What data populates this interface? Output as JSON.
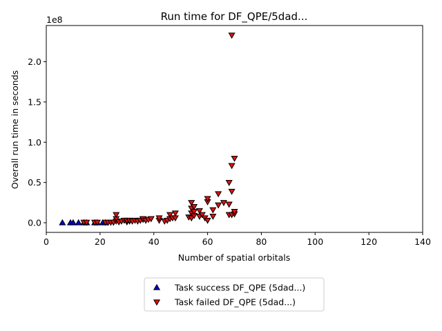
{
  "chart_data": {
    "type": "scatter",
    "title": "Run time for DF_QPE/5dad...",
    "xlabel": "Number of spatial orbitals",
    "ylabel": "Overall run time in seconds",
    "y_offset_label": "1e8",
    "y_scale_factor": 100000000,
    "xlim": [
      0,
      140
    ],
    "ylim": [
      -0.12,
      2.45
    ],
    "x_ticks": [
      0,
      20,
      40,
      60,
      80,
      100,
      120,
      140
    ],
    "x_tick_labels": [
      "0",
      "20",
      "40",
      "60",
      "80",
      "100",
      "120",
      "140"
    ],
    "y_ticks": [
      0.0,
      0.5,
      1.0,
      1.5,
      2.0
    ],
    "y_tick_labels": [
      "0.0",
      "0.5",
      "1.0",
      "1.5",
      "2.0"
    ],
    "grid": false,
    "legend_position": "below plot, center",
    "series": [
      {
        "name": "Task success DF_QPE (5dad...)",
        "marker": "triangle-up",
        "color": "#0000cc",
        "x": [
          6,
          9,
          10,
          12,
          14,
          15,
          18,
          19,
          21,
          22
        ],
        "y": [
          0.0,
          0.0,
          0.0,
          0.0,
          0.0,
          0.0,
          0.0,
          0.0,
          0.0,
          0.0
        ]
      },
      {
        "name": "Task failed DF_QPE (5dad...)",
        "marker": "triangle-down",
        "color": "#dd1111",
        "x": [
          14,
          15,
          18,
          19,
          22,
          23,
          24,
          25,
          26,
          26,
          26,
          27,
          28,
          29,
          30,
          30,
          31,
          31,
          32,
          33,
          34,
          35,
          36,
          36,
          37,
          38,
          39,
          42,
          42,
          44,
          45,
          46,
          46,
          47,
          48,
          48,
          53,
          54,
          54,
          54,
          54,
          55,
          55,
          55,
          57,
          57,
          58,
          59,
          60,
          60,
          60,
          62,
          62,
          64,
          64,
          66,
          68,
          68,
          68,
          69,
          69,
          69,
          70,
          70,
          70,
          69
        ],
        "y": [
          0.005,
          0.005,
          0.005,
          0.005,
          0.005,
          0.005,
          0.005,
          0.005,
          0.02,
          0.05,
          0.1,
          0.01,
          0.02,
          0.03,
          0.01,
          0.03,
          0.02,
          0.03,
          0.02,
          0.03,
          0.02,
          0.03,
          0.04,
          0.05,
          0.03,
          0.04,
          0.05,
          0.03,
          0.06,
          0.02,
          0.03,
          0.05,
          0.1,
          0.06,
          0.06,
          0.12,
          0.07,
          0.06,
          0.12,
          0.18,
          0.25,
          0.09,
          0.14,
          0.2,
          0.08,
          0.15,
          0.1,
          0.06,
          0.03,
          0.26,
          0.3,
          0.08,
          0.16,
          0.22,
          0.36,
          0.25,
          0.1,
          0.23,
          0.5,
          0.1,
          0.39,
          0.71,
          0.11,
          0.14,
          0.8,
          2.33
        ]
      }
    ]
  }
}
